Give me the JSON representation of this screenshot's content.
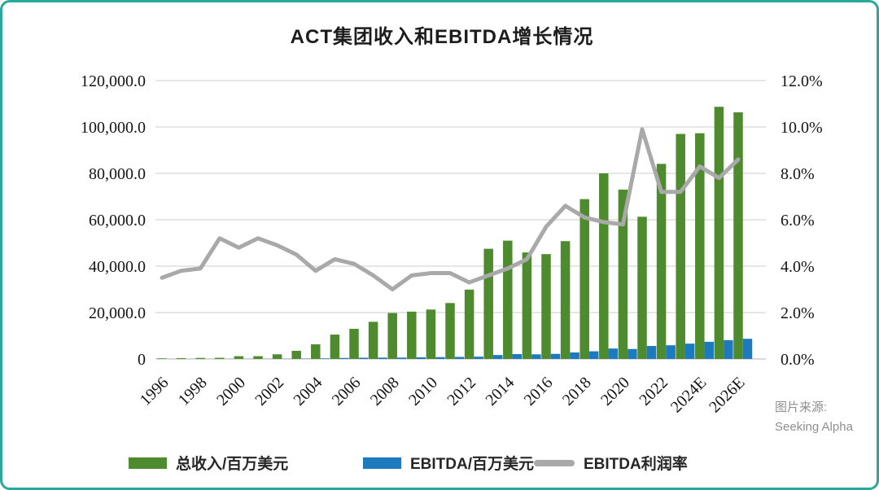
{
  "title": "ACT集团收入和EBITDA增长情况",
  "source_note": {
    "line1": "图片来源:",
    "line2": "Seeking Alpha"
  },
  "colors": {
    "revenue_bar": "#4e8a2e",
    "ebitda_bar": "#1e7abf",
    "margin_line": "#a9a9a9",
    "border": "#2aa89b",
    "grid": "#d8d8d8",
    "axis_line": "#c2c2c2",
    "axis_text": "#141414",
    "source_text": "#8f8f8f"
  },
  "chart_data": {
    "type": "bar+line combo",
    "title": "ACT集团收入和EBITDA增长情况",
    "categories": [
      "1996",
      "1997",
      "1998",
      "1999",
      "2000",
      "2001",
      "2002",
      "2003",
      "2004",
      "2005",
      "2006",
      "2007",
      "2008",
      "2009",
      "2010",
      "2011",
      "2012",
      "2013",
      "2014",
      "2015",
      "2016",
      "2017",
      "2018",
      "2019",
      "2020",
      "2021",
      "2022",
      "2023",
      "2024E",
      "2025E",
      "2026E"
    ],
    "x_tick_every": 2,
    "series": [
      {
        "name": "总收入/百万美元",
        "type": "bar",
        "axis": "left",
        "color": "#4e8a2e",
        "values": [
          250,
          350,
          450,
          500,
          1200,
          1200,
          2000,
          3500,
          6300,
          10500,
          13000,
          16000,
          19800,
          20400,
          21300,
          24100,
          29900,
          47500,
          51000,
          45900,
          45200,
          50800,
          68900,
          80000,
          73000,
          61300,
          84100,
          97000,
          97300,
          108700,
          106300
        ]
      },
      {
        "name": "EBITDA/百万美元",
        "type": "bar",
        "axis": "left",
        "color": "#1e7abf",
        "values": [
          10,
          13,
          17,
          25,
          45,
          50,
          80,
          140,
          250,
          430,
          540,
          580,
          590,
          730,
          790,
          890,
          980,
          1700,
          2100,
          2000,
          2200,
          2800,
          3300,
          4500,
          4300,
          5600,
          5900,
          6600,
          7400,
          8100,
          8700
        ]
      },
      {
        "name": "EBITDA利润率",
        "type": "line",
        "axis": "right",
        "color": "#a9a9a9",
        "unit": "%",
        "values": [
          3.5,
          3.8,
          3.9,
          5.2,
          4.8,
          5.2,
          4.9,
          4.5,
          3.8,
          4.3,
          4.1,
          3.6,
          3.0,
          3.6,
          3.7,
          3.7,
          3.3,
          3.6,
          3.9,
          4.3,
          5.7,
          6.6,
          6.1,
          5.9,
          5.8,
          9.9,
          7.2,
          7.2,
          8.3,
          7.8,
          8.6
        ]
      }
    ],
    "left_axis": {
      "min": 0,
      "max": 120000,
      "step": 20000,
      "tick_labels": [
        "120,000.0",
        "100,000.0",
        "80,000.0",
        "60,000.0",
        "40,000.0",
        "20,000.0",
        "0"
      ]
    },
    "right_axis": {
      "min": 0,
      "max": 12,
      "step": 2,
      "tick_labels": [
        "12.0%",
        "10.0%",
        "8.0%",
        "6.0%",
        "4.0%",
        "2.0%",
        "0.0%"
      ]
    },
    "grid": true,
    "legend_position": "bottom"
  }
}
